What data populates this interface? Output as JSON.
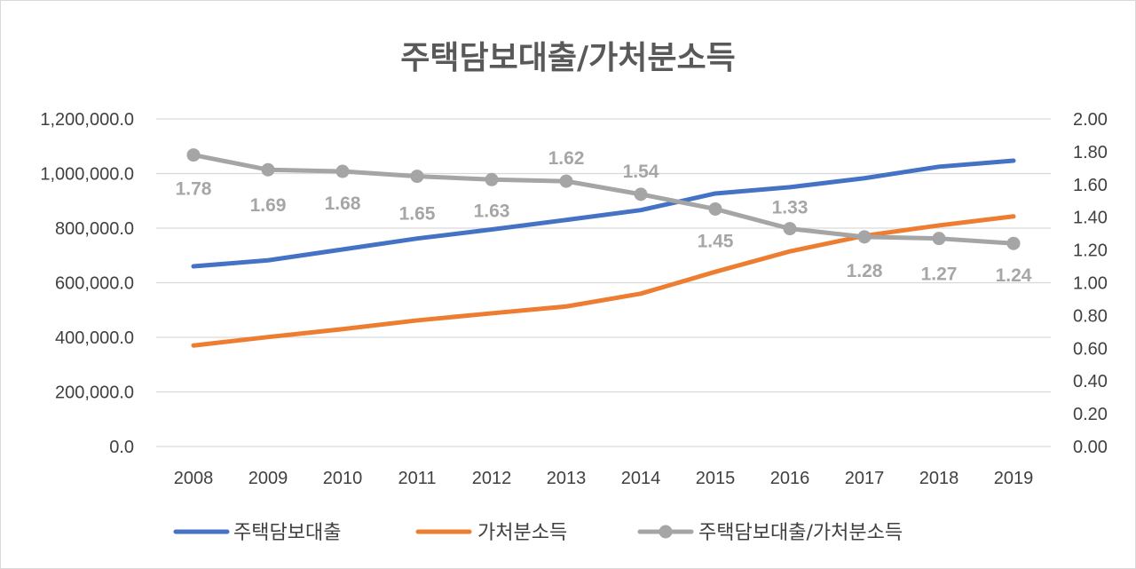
{
  "chart_data": {
    "type": "line",
    "title": "주택담보대출/가처분소득",
    "categories": [
      "2008",
      "2009",
      "2010",
      "2011",
      "2012",
      "2013",
      "2014",
      "2015",
      "2016",
      "2017",
      "2018",
      "2019"
    ],
    "y_left": {
      "ylim": [
        0,
        1200000
      ],
      "ticks": [
        0,
        200000,
        400000,
        600000,
        800000,
        1000000,
        1200000
      ],
      "tick_labels": [
        "0.0",
        "200,000.0",
        "400,000.0",
        "600,000.0",
        "800,000.0",
        "1,000,000.0",
        "1,200,000.0"
      ]
    },
    "y_right": {
      "ylim": [
        0,
        2
      ],
      "ticks": [
        0,
        0.2,
        0.4,
        0.6,
        0.8,
        1.0,
        1.2,
        1.4,
        1.6,
        1.8,
        2.0
      ],
      "tick_labels": [
        "0.00",
        "0.20",
        "0.40",
        "0.60",
        "0.80",
        "1.00",
        "1.20",
        "1.40",
        "1.60",
        "1.80",
        "2.00"
      ]
    },
    "grid": true,
    "legend_position": "bottom",
    "series": [
      {
        "name": "주택담보대출",
        "axis": "left",
        "color": "#4472c4",
        "markers": false,
        "values": [
          660000,
          682000,
          722000,
          762000,
          795000,
          830000,
          866000,
          927000,
          950000,
          983000,
          1025000,
          1047000
        ]
      },
      {
        "name": "가처분소득",
        "axis": "left",
        "color": "#ed7d31",
        "markers": false,
        "values": [
          370000,
          401000,
          430000,
          462000,
          488000,
          513000,
          560000,
          640000,
          715000,
          772000,
          810000,
          843000
        ]
      },
      {
        "name": "주택담보대출/가처분소득",
        "axis": "right",
        "color": "#a5a5a5",
        "markers": true,
        "values": [
          1.78,
          1.69,
          1.68,
          1.65,
          1.63,
          1.62,
          1.54,
          1.45,
          1.33,
          1.28,
          1.27,
          1.24
        ],
        "data_labels": [
          "1.78",
          "1.69",
          "1.68",
          "1.65",
          "1.63",
          "1.62",
          "1.54",
          "1.45",
          "1.33",
          "1.28",
          "1.27",
          "1.24"
        ]
      }
    ]
  }
}
